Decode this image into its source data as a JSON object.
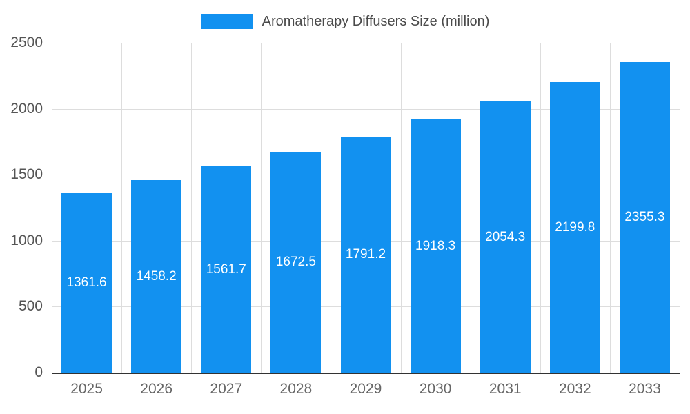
{
  "chart": {
    "legend_label": "Aromatherapy Diffusers Size (million)"
  },
  "chart_data": {
    "type": "bar",
    "title": "Aromatherapy Diffusers Size (million)",
    "categories": [
      "2025",
      "2026",
      "2027",
      "2028",
      "2029",
      "2030",
      "2031",
      "2032",
      "2033"
    ],
    "values": [
      1361.6,
      1458.2,
      1561.7,
      1672.5,
      1791.2,
      1918.3,
      2054.3,
      2199.8,
      2355.3
    ],
    "xlabel": "",
    "ylabel": "",
    "ylim": [
      0,
      2500
    ],
    "ytick_step": 500,
    "grid": true,
    "legend_position": "top",
    "bar_color": "#1291F0",
    "value_label_color": "#FFFFFF",
    "grid_color": "#DDDDDD",
    "axis_line_color": "#333333",
    "axis_text_color": "#666666"
  }
}
